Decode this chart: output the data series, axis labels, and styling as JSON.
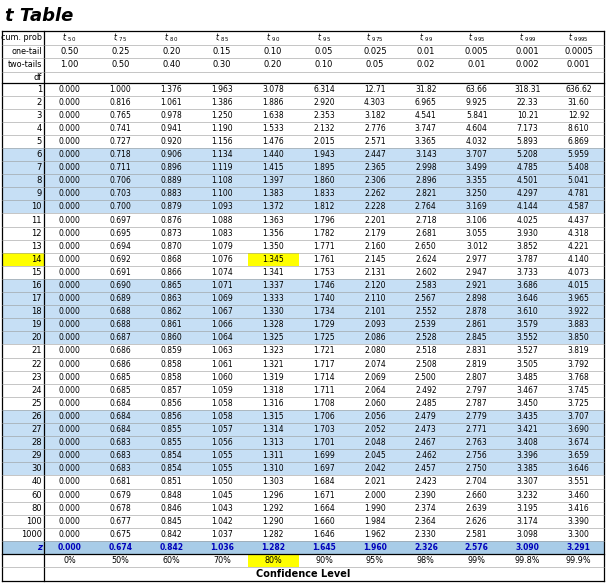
{
  "title": "t Table",
  "col_header_texts": [
    "t.50",
    "t.75",
    "t.80",
    "t.85",
    "t.90",
    "t.95",
    "t.975",
    "t.99",
    "t.995",
    "t.999",
    "t.9995"
  ],
  "col_header_subs": [
    ".50",
    ".75",
    ".80",
    ".85",
    ".90",
    ".95",
    ".975",
    ".99",
    ".995",
    ".999",
    ".9995"
  ],
  "cum_prob_vals": [
    "0.50",
    "0.25",
    "0.20",
    "0.15",
    "0.10",
    "0.05",
    "0.025",
    "0.01",
    "0.005",
    "0.001",
    "0.0005"
  ],
  "two_tails_vals": [
    "1.00",
    "0.50",
    "0.40",
    "0.30",
    "0.20",
    "0.10",
    "0.05",
    "0.02",
    "0.01",
    "0.002",
    "0.001"
  ],
  "df_labels": [
    "1",
    "2",
    "3",
    "4",
    "5",
    "6",
    "7",
    "8",
    "9",
    "10",
    "11",
    "12",
    "13",
    "14",
    "15",
    "16",
    "17",
    "18",
    "19",
    "20",
    "21",
    "22",
    "23",
    "24",
    "25",
    "26",
    "27",
    "28",
    "29",
    "30",
    "40",
    "60",
    "80",
    "100",
    "1000",
    "z"
  ],
  "data": [
    [
      0.0,
      1.0,
      1.376,
      1.963,
      3.078,
      6.314,
      12.71,
      31.82,
      63.66,
      318.31,
      636.62
    ],
    [
      0.0,
      0.816,
      1.061,
      1.386,
      1.886,
      2.92,
      4.303,
      6.965,
      9.925,
      22.327,
      31.599
    ],
    [
      0.0,
      0.765,
      0.978,
      1.25,
      1.638,
      2.353,
      3.182,
      4.541,
      5.841,
      10.215,
      12.924
    ],
    [
      0.0,
      0.741,
      0.941,
      1.19,
      1.533,
      2.132,
      2.776,
      3.747,
      4.604,
      7.173,
      8.61
    ],
    [
      0.0,
      0.727,
      0.92,
      1.156,
      1.476,
      2.015,
      2.571,
      3.365,
      4.032,
      5.893,
      6.869
    ],
    [
      0.0,
      0.718,
      0.906,
      1.134,
      1.44,
      1.943,
      2.447,
      3.143,
      3.707,
      5.208,
      5.959
    ],
    [
      0.0,
      0.711,
      0.896,
      1.119,
      1.415,
      1.895,
      2.365,
      2.998,
      3.499,
      4.785,
      5.408
    ],
    [
      0.0,
      0.706,
      0.889,
      1.108,
      1.397,
      1.86,
      2.306,
      2.896,
      3.355,
      4.501,
      5.041
    ],
    [
      0.0,
      0.703,
      0.883,
      1.1,
      1.383,
      1.833,
      2.262,
      2.821,
      3.25,
      4.297,
      4.781
    ],
    [
      0.0,
      0.7,
      0.879,
      1.093,
      1.372,
      1.812,
      2.228,
      2.764,
      3.169,
      4.144,
      4.587
    ],
    [
      0.0,
      0.697,
      0.876,
      1.088,
      1.363,
      1.796,
      2.201,
      2.718,
      3.106,
      4.025,
      4.437
    ],
    [
      0.0,
      0.695,
      0.873,
      1.083,
      1.356,
      1.782,
      2.179,
      2.681,
      3.055,
      3.93,
      4.318
    ],
    [
      0.0,
      0.694,
      0.87,
      1.079,
      1.35,
      1.771,
      2.16,
      2.65,
      3.012,
      3.852,
      4.221
    ],
    [
      0.0,
      0.692,
      0.868,
      1.076,
      1.345,
      1.761,
      2.145,
      2.624,
      2.977,
      3.787,
      4.14
    ],
    [
      0.0,
      0.691,
      0.866,
      1.074,
      1.341,
      1.753,
      2.131,
      2.602,
      2.947,
      3.733,
      4.073
    ],
    [
      0.0,
      0.69,
      0.865,
      1.071,
      1.337,
      1.746,
      2.12,
      2.583,
      2.921,
      3.686,
      4.015
    ],
    [
      0.0,
      0.689,
      0.863,
      1.069,
      1.333,
      1.74,
      2.11,
      2.567,
      2.898,
      3.646,
      3.965
    ],
    [
      0.0,
      0.688,
      0.862,
      1.067,
      1.33,
      1.734,
      2.101,
      2.552,
      2.878,
      3.61,
      3.922
    ],
    [
      0.0,
      0.688,
      0.861,
      1.066,
      1.328,
      1.729,
      2.093,
      2.539,
      2.861,
      3.579,
      3.883
    ],
    [
      0.0,
      0.687,
      0.86,
      1.064,
      1.325,
      1.725,
      2.086,
      2.528,
      2.845,
      3.552,
      3.85
    ],
    [
      0.0,
      0.686,
      0.859,
      1.063,
      1.323,
      1.721,
      2.08,
      2.518,
      2.831,
      3.527,
      3.819
    ],
    [
      0.0,
      0.686,
      0.858,
      1.061,
      1.321,
      1.717,
      2.074,
      2.508,
      2.819,
      3.505,
      3.792
    ],
    [
      0.0,
      0.685,
      0.858,
      1.06,
      1.319,
      1.714,
      2.069,
      2.5,
      2.807,
      3.485,
      3.768
    ],
    [
      0.0,
      0.685,
      0.857,
      1.059,
      1.318,
      1.711,
      2.064,
      2.492,
      2.797,
      3.467,
      3.745
    ],
    [
      0.0,
      0.684,
      0.856,
      1.058,
      1.316,
      1.708,
      2.06,
      2.485,
      2.787,
      3.45,
      3.725
    ],
    [
      0.0,
      0.684,
      0.856,
      1.058,
      1.315,
      1.706,
      2.056,
      2.479,
      2.779,
      3.435,
      3.707
    ],
    [
      0.0,
      0.684,
      0.855,
      1.057,
      1.314,
      1.703,
      2.052,
      2.473,
      2.771,
      3.421,
      3.69
    ],
    [
      0.0,
      0.683,
      0.855,
      1.056,
      1.313,
      1.701,
      2.048,
      2.467,
      2.763,
      3.408,
      3.674
    ],
    [
      0.0,
      0.683,
      0.854,
      1.055,
      1.311,
      1.699,
      2.045,
      2.462,
      2.756,
      3.396,
      3.659
    ],
    [
      0.0,
      0.683,
      0.854,
      1.055,
      1.31,
      1.697,
      2.042,
      2.457,
      2.75,
      3.385,
      3.646
    ],
    [
      0.0,
      0.681,
      0.851,
      1.05,
      1.303,
      1.684,
      2.021,
      2.423,
      2.704,
      3.307,
      3.551
    ],
    [
      0.0,
      0.679,
      0.848,
      1.045,
      1.296,
      1.671,
      2.0,
      2.39,
      2.66,
      3.232,
      3.46
    ],
    [
      0.0,
      0.678,
      0.846,
      1.043,
      1.292,
      1.664,
      1.99,
      2.374,
      2.639,
      3.195,
      3.416
    ],
    [
      0.0,
      0.677,
      0.845,
      1.042,
      1.29,
      1.66,
      1.984,
      2.364,
      2.626,
      3.174,
      3.39
    ],
    [
      0.0,
      0.675,
      0.842,
      1.037,
      1.282,
      1.646,
      1.962,
      2.33,
      2.581,
      3.098,
      3.3
    ],
    [
      0.0,
      0.674,
      0.842,
      1.036,
      1.282,
      1.645,
      1.96,
      2.326,
      2.576,
      3.09,
      3.291
    ]
  ],
  "confidence_levels": [
    "0%",
    "50%",
    "60%",
    "70%",
    "80%",
    "90%",
    "95%",
    "98%",
    "99%",
    "99.8%",
    "99.9%"
  ],
  "color_white": "#ffffff",
  "color_blue": "#c6dff5",
  "color_z_blue": "#a8cce8",
  "color_yellow": "#ffff00",
  "color_black": "#000000",
  "color_dark_blue": "#0000bb"
}
